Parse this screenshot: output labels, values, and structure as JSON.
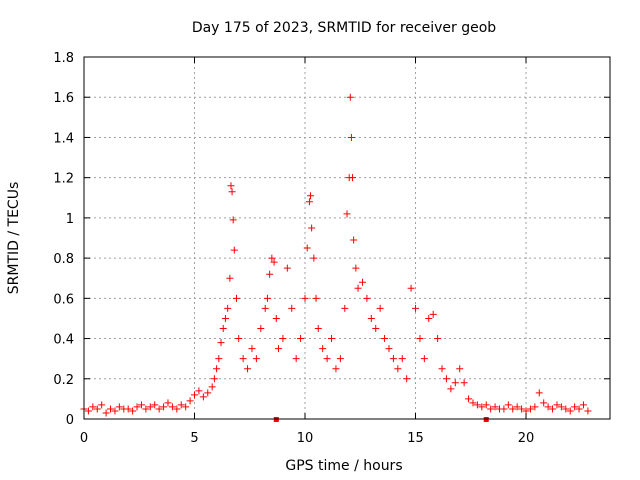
{
  "chart_data": {
    "type": "scatter",
    "title": "Day 175 of 2023, SRMTID for receiver geob",
    "xlabel": "GPS time / hours",
    "ylabel": "SRMTID / TECUs",
    "xlim": [
      0,
      23.8
    ],
    "ylim": [
      0,
      1.8
    ],
    "xticks": [
      0,
      5,
      10,
      15,
      20
    ],
    "xtick_labels": [
      "0",
      "5",
      "10",
      "15",
      "20"
    ],
    "yticks": [
      0,
      0.2,
      0.4,
      0.6,
      0.8,
      1.0,
      1.2,
      1.4,
      1.6,
      1.8
    ],
    "ytick_labels": [
      "0",
      "0.2",
      "0.4",
      "0.6",
      "0.8",
      "1",
      "1.2",
      "1.4",
      "1.6",
      "1.8"
    ],
    "grid": true,
    "marker": "+",
    "color": "#ff0000",
    "series": [
      {
        "name": "SRMTID",
        "points": [
          [
            0.0,
            0.05
          ],
          [
            0.2,
            0.04
          ],
          [
            0.4,
            0.06
          ],
          [
            0.6,
            0.05
          ],
          [
            0.8,
            0.07
          ],
          [
            1.0,
            0.03
          ],
          [
            1.2,
            0.05
          ],
          [
            1.4,
            0.04
          ],
          [
            1.6,
            0.06
          ],
          [
            1.8,
            0.05
          ],
          [
            2.0,
            0.05
          ],
          [
            2.2,
            0.04
          ],
          [
            2.4,
            0.06
          ],
          [
            2.6,
            0.07
          ],
          [
            2.8,
            0.05
          ],
          [
            3.0,
            0.06
          ],
          [
            3.2,
            0.07
          ],
          [
            3.4,
            0.05
          ],
          [
            3.6,
            0.06
          ],
          [
            3.8,
            0.08
          ],
          [
            4.0,
            0.06
          ],
          [
            4.2,
            0.05
          ],
          [
            4.4,
            0.07
          ],
          [
            4.6,
            0.06
          ],
          [
            4.8,
            0.09
          ],
          [
            5.0,
            0.12
          ],
          [
            5.2,
            0.14
          ],
          [
            5.4,
            0.11
          ],
          [
            5.6,
            0.13
          ],
          [
            5.8,
            0.16
          ],
          [
            5.9,
            0.2
          ],
          [
            6.0,
            0.25
          ],
          [
            6.1,
            0.3
          ],
          [
            6.2,
            0.38
          ],
          [
            6.3,
            0.45
          ],
          [
            6.4,
            0.5
          ],
          [
            6.5,
            0.55
          ],
          [
            6.6,
            0.7
          ],
          [
            6.65,
            1.16
          ],
          [
            6.7,
            1.13
          ],
          [
            6.75,
            0.99
          ],
          [
            6.8,
            0.84
          ],
          [
            6.9,
            0.6
          ],
          [
            7.0,
            0.4
          ],
          [
            7.2,
            0.3
          ],
          [
            7.4,
            0.25
          ],
          [
            7.6,
            0.35
          ],
          [
            7.8,
            0.3
          ],
          [
            8.0,
            0.45
          ],
          [
            8.2,
            0.55
          ],
          [
            8.3,
            0.6
          ],
          [
            8.4,
            0.72
          ],
          [
            8.5,
            0.8
          ],
          [
            8.6,
            0.78
          ],
          [
            8.7,
            0.5
          ],
          [
            8.8,
            0.35
          ],
          [
            9.0,
            0.4
          ],
          [
            9.2,
            0.75
          ],
          [
            9.4,
            0.55
          ],
          [
            9.6,
            0.3
          ],
          [
            9.8,
            0.4
          ],
          [
            10.0,
            0.6
          ],
          [
            10.1,
            0.85
          ],
          [
            10.2,
            1.08
          ],
          [
            10.25,
            1.11
          ],
          [
            10.3,
            0.95
          ],
          [
            10.4,
            0.8
          ],
          [
            10.5,
            0.6
          ],
          [
            10.6,
            0.45
          ],
          [
            10.8,
            0.35
          ],
          [
            11.0,
            0.3
          ],
          [
            11.2,
            0.4
          ],
          [
            11.4,
            0.25
          ],
          [
            11.6,
            0.3
          ],
          [
            11.8,
            0.55
          ],
          [
            11.9,
            1.02
          ],
          [
            12.0,
            1.2
          ],
          [
            12.05,
            1.6
          ],
          [
            12.1,
            1.4
          ],
          [
            12.15,
            1.2
          ],
          [
            12.2,
            0.89
          ],
          [
            12.3,
            0.75
          ],
          [
            12.4,
            0.65
          ],
          [
            12.6,
            0.68
          ],
          [
            12.8,
            0.6
          ],
          [
            13.0,
            0.5
          ],
          [
            13.2,
            0.45
          ],
          [
            13.4,
            0.55
          ],
          [
            13.6,
            0.4
          ],
          [
            13.8,
            0.35
          ],
          [
            14.0,
            0.3
          ],
          [
            14.2,
            0.25
          ],
          [
            14.4,
            0.3
          ],
          [
            14.6,
            0.2
          ],
          [
            14.8,
            0.65
          ],
          [
            15.0,
            0.55
          ],
          [
            15.2,
            0.4
          ],
          [
            15.4,
            0.3
          ],
          [
            15.6,
            0.5
          ],
          [
            15.8,
            0.52
          ],
          [
            16.0,
            0.4
          ],
          [
            16.2,
            0.25
          ],
          [
            16.4,
            0.2
          ],
          [
            16.6,
            0.15
          ],
          [
            16.8,
            0.18
          ],
          [
            17.0,
            0.25
          ],
          [
            17.2,
            0.18
          ],
          [
            17.4,
            0.1
          ],
          [
            17.6,
            0.08
          ],
          [
            17.8,
            0.07
          ],
          [
            18.0,
            0.06
          ],
          [
            18.2,
            0.07
          ],
          [
            18.4,
            0.05
          ],
          [
            18.6,
            0.06
          ],
          [
            18.8,
            0.05
          ],
          [
            19.0,
            0.05
          ],
          [
            19.2,
            0.07
          ],
          [
            19.4,
            0.05
          ],
          [
            19.6,
            0.06
          ],
          [
            19.8,
            0.05
          ],
          [
            20.0,
            0.04
          ],
          [
            20.2,
            0.05
          ],
          [
            20.4,
            0.06
          ],
          [
            20.6,
            0.13
          ],
          [
            20.8,
            0.08
          ],
          [
            21.0,
            0.06
          ],
          [
            21.2,
            0.05
          ],
          [
            21.4,
            0.07
          ],
          [
            21.6,
            0.06
          ],
          [
            21.8,
            0.05
          ],
          [
            22.0,
            0.04
          ],
          [
            22.2,
            0.06
          ],
          [
            22.4,
            0.05
          ],
          [
            22.6,
            0.07
          ],
          [
            22.8,
            0.04
          ]
        ]
      }
    ],
    "outliers_zero": [
      8.7,
      18.2
    ]
  }
}
